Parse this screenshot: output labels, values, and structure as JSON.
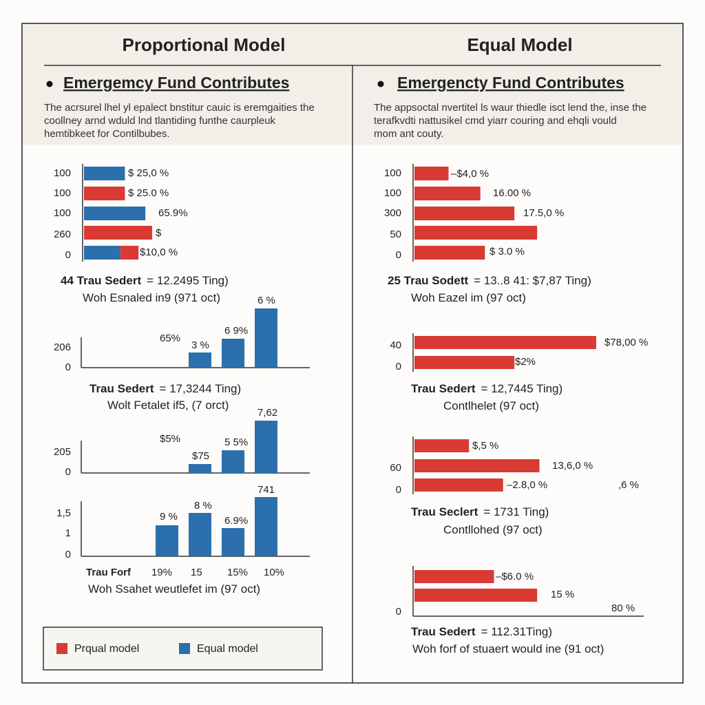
{
  "panels": [
    {
      "title": "Proportional Model",
      "bullet": "Emergemcy Fund Contributes",
      "description": [
        "The acrsurel lhel yl epalect bnstitur cauic is eremgaities the",
        "coollney arnd wduld lnd tlantiding funthe caurpleuk",
        "hemtibkeet for Contilbubes."
      ],
      "charts": [
        {
          "orientation": "horizontal",
          "ylabels": [
            "100",
            "100",
            "100",
            "260",
            "0"
          ],
          "bars": [
            {
              "values": [
                18
              ],
              "colors": [
                "#2b6fac"
              ]
            },
            {
              "values": [
                18
              ],
              "colors": [
                "#d93a34"
              ]
            },
            {
              "values": [
                27
              ],
              "colors": [
                "#2b6fac"
              ]
            },
            {
              "values": [
                30
              ],
              "colors": [
                "#d93a34"
              ]
            },
            {
              "values": [
                16,
                8
              ],
              "colors": [
                "#2b6fac",
                "#d93a34"
              ]
            }
          ],
          "annotations": [
            "$ 25,0 %",
            "$ 25.0 %",
            "65.9%",
            "$",
            "$10,0 %"
          ],
          "caption": [
            {
              "bold": "44  Trau Sedert",
              "text": "= 12.2495 Ting)"
            },
            {
              "text": "Woh Esnaled in9 (971 oct)"
            }
          ]
        },
        {
          "orientation": "vertical",
          "ylabels": [
            "206",
            "0"
          ],
          "bars": [
            {
              "values": [
                22
              ],
              "colors": [
                "#2b6fac"
              ]
            },
            {
              "values": [
                42
              ],
              "colors": [
                "#2b6fac"
              ]
            },
            {
              "values": [
                86
              ],
              "colors": [
                "#2b6fac"
              ]
            }
          ],
          "annotations": [
            "65%",
            "3 %",
            "6 9%",
            "6 %"
          ],
          "caption": [
            {
              "bold": "Trau Sedert",
              "text": "= 17,3244 Ting)"
            },
            {
              "text": "Wolt Fetalet if5, (7 orct)"
            }
          ]
        },
        {
          "orientation": "vertical",
          "ylabels": [
            "205",
            "0"
          ],
          "bars": [
            {
              "values": [
                13
              ],
              "colors": [
                "#2b6fac"
              ]
            },
            {
              "values": [
                33
              ],
              "colors": [
                "#2b6fac"
              ]
            },
            {
              "values": [
                76
              ],
              "colors": [
                "#2b6fac"
              ]
            }
          ],
          "annotations": [
            "$5%",
            "$75",
            "5 5%",
            "7,62"
          ]
        },
        {
          "orientation": "vertical",
          "ylabels": [
            "1,5",
            "1",
            "0"
          ],
          "bars": [
            {
              "values": [
                45
              ],
              "colors": [
                "#2b6fac"
              ]
            },
            {
              "values": [
                63
              ],
              "colors": [
                "#2b6fac"
              ]
            },
            {
              "values": [
                41
              ],
              "colors": [
                "#2b6fac"
              ]
            },
            {
              "values": [
                86
              ],
              "colors": [
                "#2b6fac"
              ]
            }
          ],
          "annotations": [
            "9 %",
            "8 %",
            "6.9%",
            "741"
          ],
          "xlabels_title": "Trau Forf",
          "xlabels": [
            "19%",
            "15",
            "15%",
            "10%"
          ],
          "caption": [
            {
              "text": "Woh Ssahet weutlefet im (97 oct)"
            }
          ]
        }
      ]
    },
    {
      "title": "Equal Model",
      "bullet": "Emergencty Fund Contributes",
      "description": [
        "The appsoctal nvertitel ls waur thiedle isct lend the, inse the",
        "terafkvdti nattusikel cmd yiarr couring and ehqli vould",
        "mom ant couty."
      ],
      "charts": [
        {
          "orientation": "horizontal",
          "ylabels": [
            "100",
            "100",
            "300",
            "50",
            "0"
          ],
          "bars": [
            {
              "values": [
                15
              ],
              "colors": [
                "#d93a34"
              ]
            },
            {
              "values": [
                29
              ],
              "colors": [
                "#d93a34"
              ]
            },
            {
              "values": [
                44
              ],
              "colors": [
                "#d93a34"
              ]
            },
            {
              "values": [
                54
              ],
              "colors": [
                "#d93a34"
              ]
            },
            {
              "values": [
                31
              ],
              "colors": [
                "#d93a34"
              ]
            }
          ],
          "annotations": [
            "–$4,0 %",
            "16.00 %",
            "17.5,0 %",
            "$ 3.0 %"
          ],
          "caption": [
            {
              "bold": "25  Trau Sodett",
              "text": "= 13..8 41: $7,87 Ting)"
            },
            {
              "text": "Woh Eazel im (97 oct)"
            }
          ]
        },
        {
          "orientation": "horizontal",
          "ylabels": [
            "40",
            "0"
          ],
          "bars": [
            {
              "values": [
                80
              ],
              "colors": [
                "#d93a34"
              ]
            },
            {
              "values": [
                44
              ],
              "colors": [
                "#d93a34"
              ]
            }
          ],
          "annotations": [
            "$78,00 %",
            "$2%"
          ],
          "caption": [
            {
              "bold": "Trau Sedert",
              "text": "= 12,7445 Ting)"
            },
            {
              "text": "Contlhelet (97 oct)"
            }
          ]
        },
        {
          "orientation": "horizontal",
          "ylabels": [
            "60",
            "0"
          ],
          "bars": [
            {
              "values": [
                24
              ],
              "colors": [
                "#d93a34"
              ]
            },
            {
              "values": [
                55
              ],
              "colors": [
                "#d93a34"
              ]
            },
            {
              "values": [
                39
              ],
              "colors": [
                "#d93a34"
              ]
            }
          ],
          "annotations": [
            "$,5 %",
            "13,6,0 %",
            "–2.8,0 %",
            ",6 %"
          ],
          "caption": [
            {
              "bold": "Trau Seclert",
              "text": "= 1731 Ting)"
            },
            {
              "text": "Contllohed (97 oct)"
            }
          ]
        },
        {
          "orientation": "horizontal",
          "ylabels": [
            "0"
          ],
          "bars": [
            {
              "values": [
                35
              ],
              "colors": [
                "#d93a34"
              ]
            },
            {
              "values": [
                54
              ],
              "colors": [
                "#d93a34"
              ]
            }
          ],
          "annotations": [
            "–$6.0 %",
            "15 %",
            "80 %"
          ],
          "caption": [
            {
              "bold": "Trau Sedert",
              "text": "= 112.31Ting)"
            },
            {
              "text": "Woh forf of stuaert would ine (91 oct)"
            }
          ]
        }
      ]
    }
  ],
  "legend": [
    {
      "label": "Prqual model",
      "color": "#d93a34"
    },
    {
      "label": "Equal model",
      "color": "#2b6fac"
    }
  ]
}
